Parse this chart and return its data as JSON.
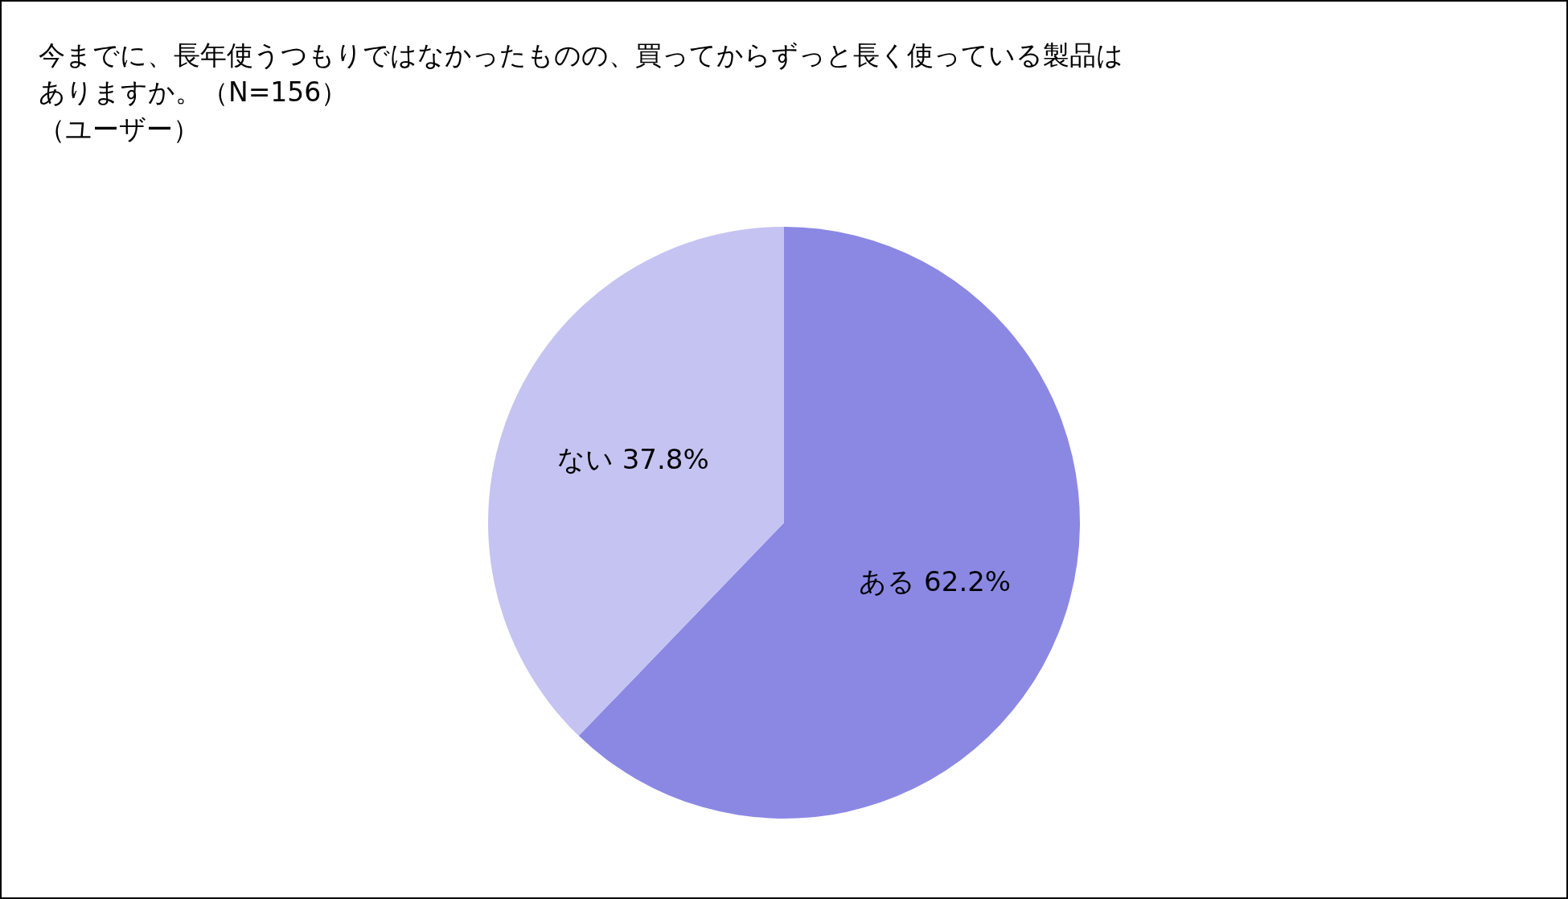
{
  "chart_data": {
    "type": "pie",
    "title": "今までに、長年使うつもりではなかったものの、買ってからずっと長く使っている製品はありますか。（N=156）",
    "subtitle": "（ユーザー）",
    "categories": [
      "ある",
      "ない"
    ],
    "values": [
      62.2,
      37.8
    ],
    "colors": [
      "#8b88e4",
      "#c5c3f2"
    ],
    "value_labels": [
      "62.2%",
      "37.8%"
    ],
    "legend": false
  }
}
